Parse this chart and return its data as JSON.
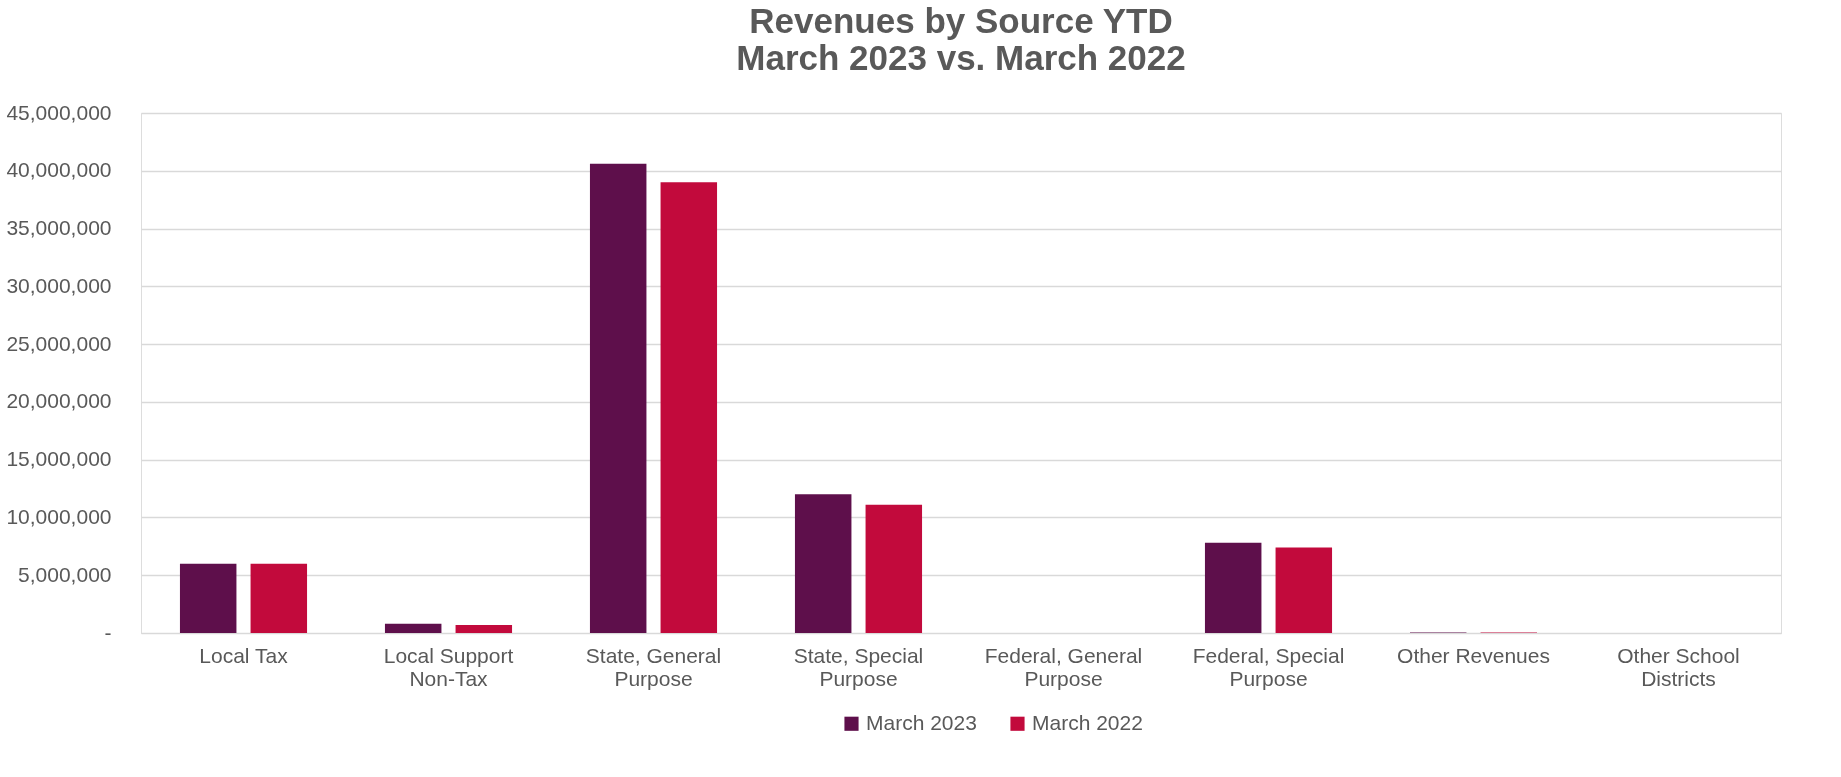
{
  "chart_data": {
    "type": "bar",
    "title": [
      "Revenues by Source YTD",
      "March 2023 vs. March 2022"
    ],
    "categories": [
      "Local Tax",
      "Local Support Non-Tax",
      "State, General Purpose",
      "State, Special Purpose",
      "Federal, General Purpose",
      "Federal, Special Purpose",
      "Other Revenues",
      "Other School Districts"
    ],
    "series": [
      {
        "name": "March 2023",
        "color": "#5e0f4b",
        "values": [
          6000000,
          800000,
          40600000,
          12000000,
          0,
          7800000,
          50000,
          0
        ]
      },
      {
        "name": "March 2022",
        "color": "#c20a3c",
        "values": [
          6000000,
          700000,
          39000000,
          11100000,
          0,
          7400000,
          50000,
          0
        ]
      }
    ],
    "ylim": [
      0,
      45000000
    ],
    "yticks": [
      {
        "value": 0,
        "label": "-"
      },
      {
        "value": 5000000,
        "label": "5,000,000"
      },
      {
        "value": 10000000,
        "label": "10,000,000"
      },
      {
        "value": 15000000,
        "label": "15,000,000"
      },
      {
        "value": 20000000,
        "label": "20,000,000"
      },
      {
        "value": 25000000,
        "label": "25,000,000"
      },
      {
        "value": 30000000,
        "label": "30,000,000"
      },
      {
        "value": 35000000,
        "label": "35,000,000"
      },
      {
        "value": 40000000,
        "label": "40,000,000"
      },
      {
        "value": 45000000,
        "label": "45,000,000"
      }
    ],
    "grid": "y",
    "legend": "bottom"
  }
}
